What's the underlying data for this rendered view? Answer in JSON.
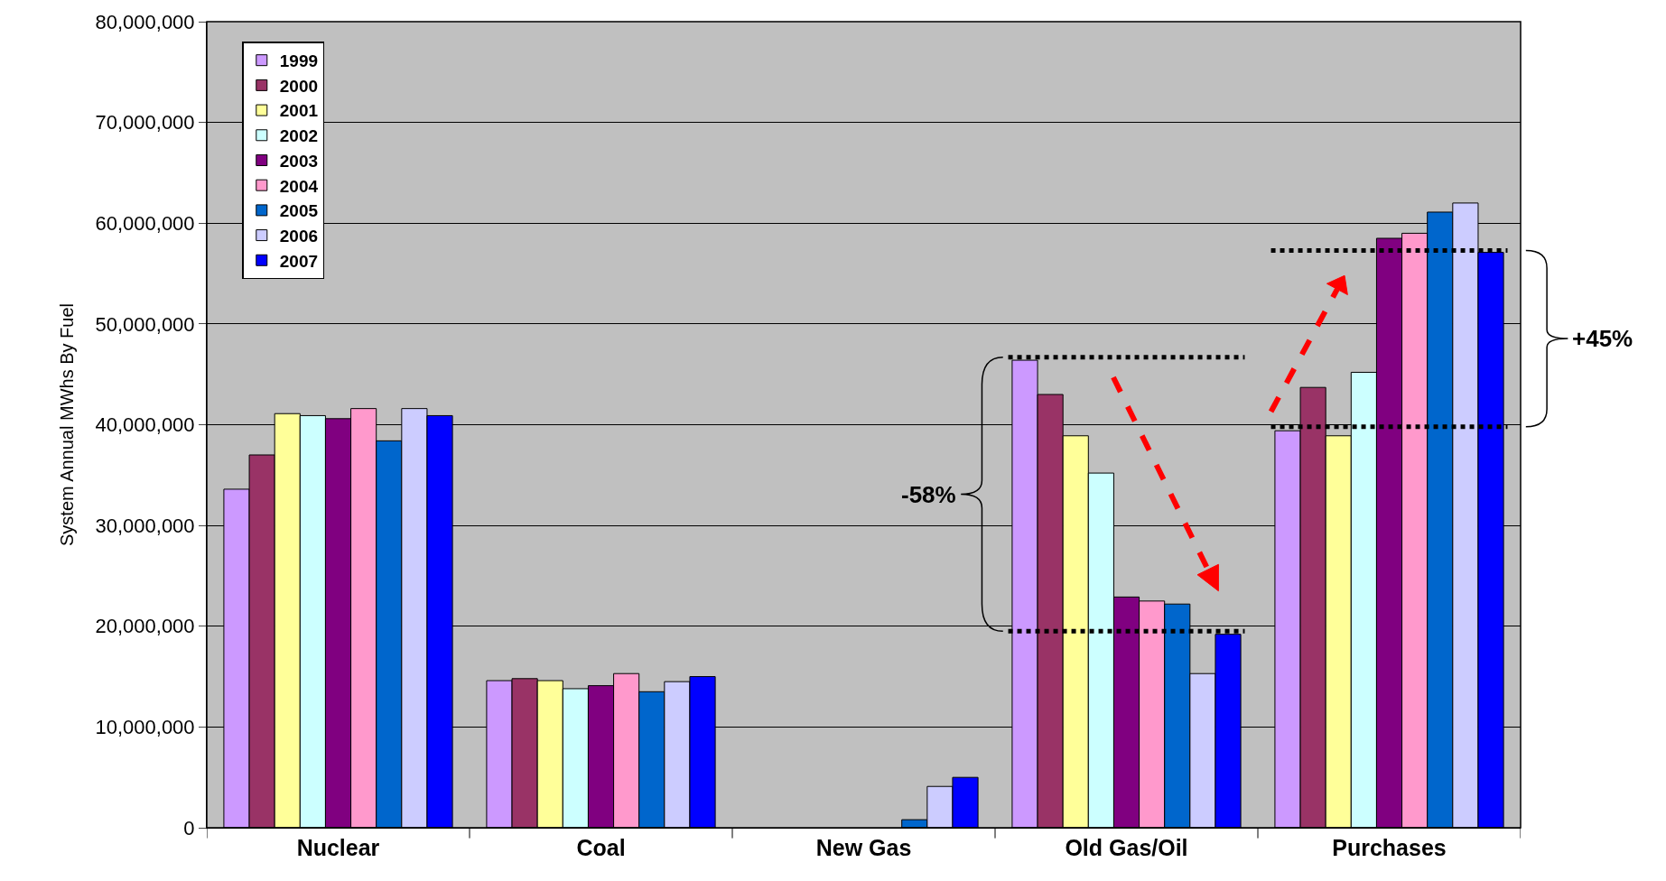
{
  "chart_data": {
    "type": "bar",
    "ylabel": "System Annual MWhs By Fuel",
    "categories": [
      "Nuclear",
      "Coal",
      "New Gas",
      "Old Gas/Oil",
      "Purchases"
    ],
    "series": [
      {
        "name": "1999",
        "color": "#cc99ff",
        "values": [
          33600000,
          14600000,
          null,
          46400000,
          39400000
        ]
      },
      {
        "name": "2000",
        "color": "#993366",
        "values": [
          37000000,
          14800000,
          null,
          43000000,
          43700000
        ]
      },
      {
        "name": "2001",
        "color": "#ffff99",
        "values": [
          41100000,
          14600000,
          null,
          38900000,
          38900000
        ]
      },
      {
        "name": "2002",
        "color": "#ccffff",
        "values": [
          40900000,
          13800000,
          null,
          35200000,
          45200000
        ]
      },
      {
        "name": "2003",
        "color": "#800080",
        "values": [
          40600000,
          14100000,
          null,
          22900000,
          58500000
        ]
      },
      {
        "name": "2004",
        "color": "#ff99cc",
        "values": [
          41600000,
          15300000,
          null,
          22500000,
          59000000
        ]
      },
      {
        "name": "2005",
        "color": "#0066cc",
        "values": [
          38400000,
          13500000,
          800000,
          22200000,
          61100000
        ]
      },
      {
        "name": "2006",
        "color": "#ccccff",
        "values": [
          41600000,
          14500000,
          4100000,
          15300000,
          62000000
        ]
      },
      {
        "name": "2007",
        "color": "#0000ff",
        "values": [
          40900000,
          15000000,
          5000000,
          19200000,
          57100000
        ]
      }
    ],
    "ylim": [
      0,
      80000000
    ],
    "yticks": [
      {
        "value": 0,
        "label": "0"
      },
      {
        "value": 10000000,
        "label": "10,000,000"
      },
      {
        "value": 20000000,
        "label": "20,000,000"
      },
      {
        "value": 30000000,
        "label": "30,000,000"
      },
      {
        "value": 40000000,
        "label": "40,000,000"
      },
      {
        "value": 50000000,
        "label": "50,000,000"
      },
      {
        "value": 60000000,
        "label": "60,000,000"
      },
      {
        "value": 70000000,
        "label": "70,000,000"
      },
      {
        "value": 80000000,
        "label": "80,000,000"
      }
    ],
    "grid": "y",
    "legend": "top left",
    "ref_lines": [
      {
        "axis": "y",
        "value": 46700000,
        "color": "#000000",
        "line_style": "dotted"
      },
      {
        "axis": "y",
        "value": 19500000,
        "color": "#000000",
        "line_style": "dotted"
      },
      {
        "axis": "y",
        "value": 57300000,
        "color": "#000000",
        "line_style": "dotted"
      },
      {
        "axis": "y",
        "value": 39800000,
        "color": "#000000",
        "line_style": "dotted"
      }
    ],
    "annotations": [
      "-58%",
      "+45%"
    ]
  }
}
